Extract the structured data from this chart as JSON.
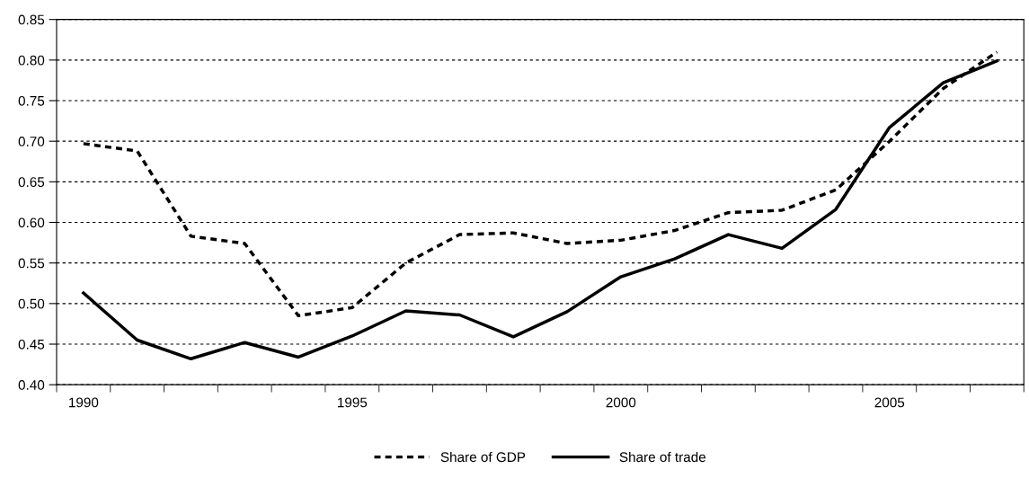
{
  "chart_data": {
    "type": "line",
    "categories": [
      "1990",
      null,
      null,
      null,
      null,
      "1995",
      null,
      null,
      null,
      null,
      "2000",
      null,
      null,
      null,
      null,
      "2005",
      null,
      null
    ],
    "series": [
      {
        "name": "Share of GDP",
        "color": "#000000",
        "line_style": "dashed",
        "values": [
          0.697,
          0.688,
          0.583,
          0.574,
          0.485,
          0.495,
          0.55,
          0.585,
          0.587,
          0.574,
          0.578,
          0.59,
          0.612,
          0.615,
          0.64,
          0.7,
          0.765,
          0.81
        ]
      },
      {
        "name": "Share of trade",
        "color": "#000000",
        "line_style": "solid",
        "values": [
          0.513,
          0.455,
          0.432,
          0.452,
          0.434,
          0.46,
          0.491,
          0.486,
          0.459,
          0.49,
          0.533,
          0.555,
          0.585,
          0.568,
          0.616,
          0.717,
          0.772,
          0.799
        ]
      }
    ],
    "ylim": [
      0.4,
      0.85
    ],
    "yticks": [
      {
        "value": 0.4,
        "label": "0.40"
      },
      {
        "value": 0.45,
        "label": "0.45"
      },
      {
        "value": 0.5,
        "label": "0.50"
      },
      {
        "value": 0.55,
        "label": "0.55"
      },
      {
        "value": 0.6,
        "label": "0.60"
      },
      {
        "value": 0.65,
        "label": "0.65"
      },
      {
        "value": 0.7,
        "label": "0.70"
      },
      {
        "value": 0.75,
        "label": "0.75"
      },
      {
        "value": 0.8,
        "label": "0.80"
      },
      {
        "value": 0.85,
        "label": "0.85"
      }
    ],
    "grid": "y",
    "legend": "bottom",
    "marker": "none"
  }
}
